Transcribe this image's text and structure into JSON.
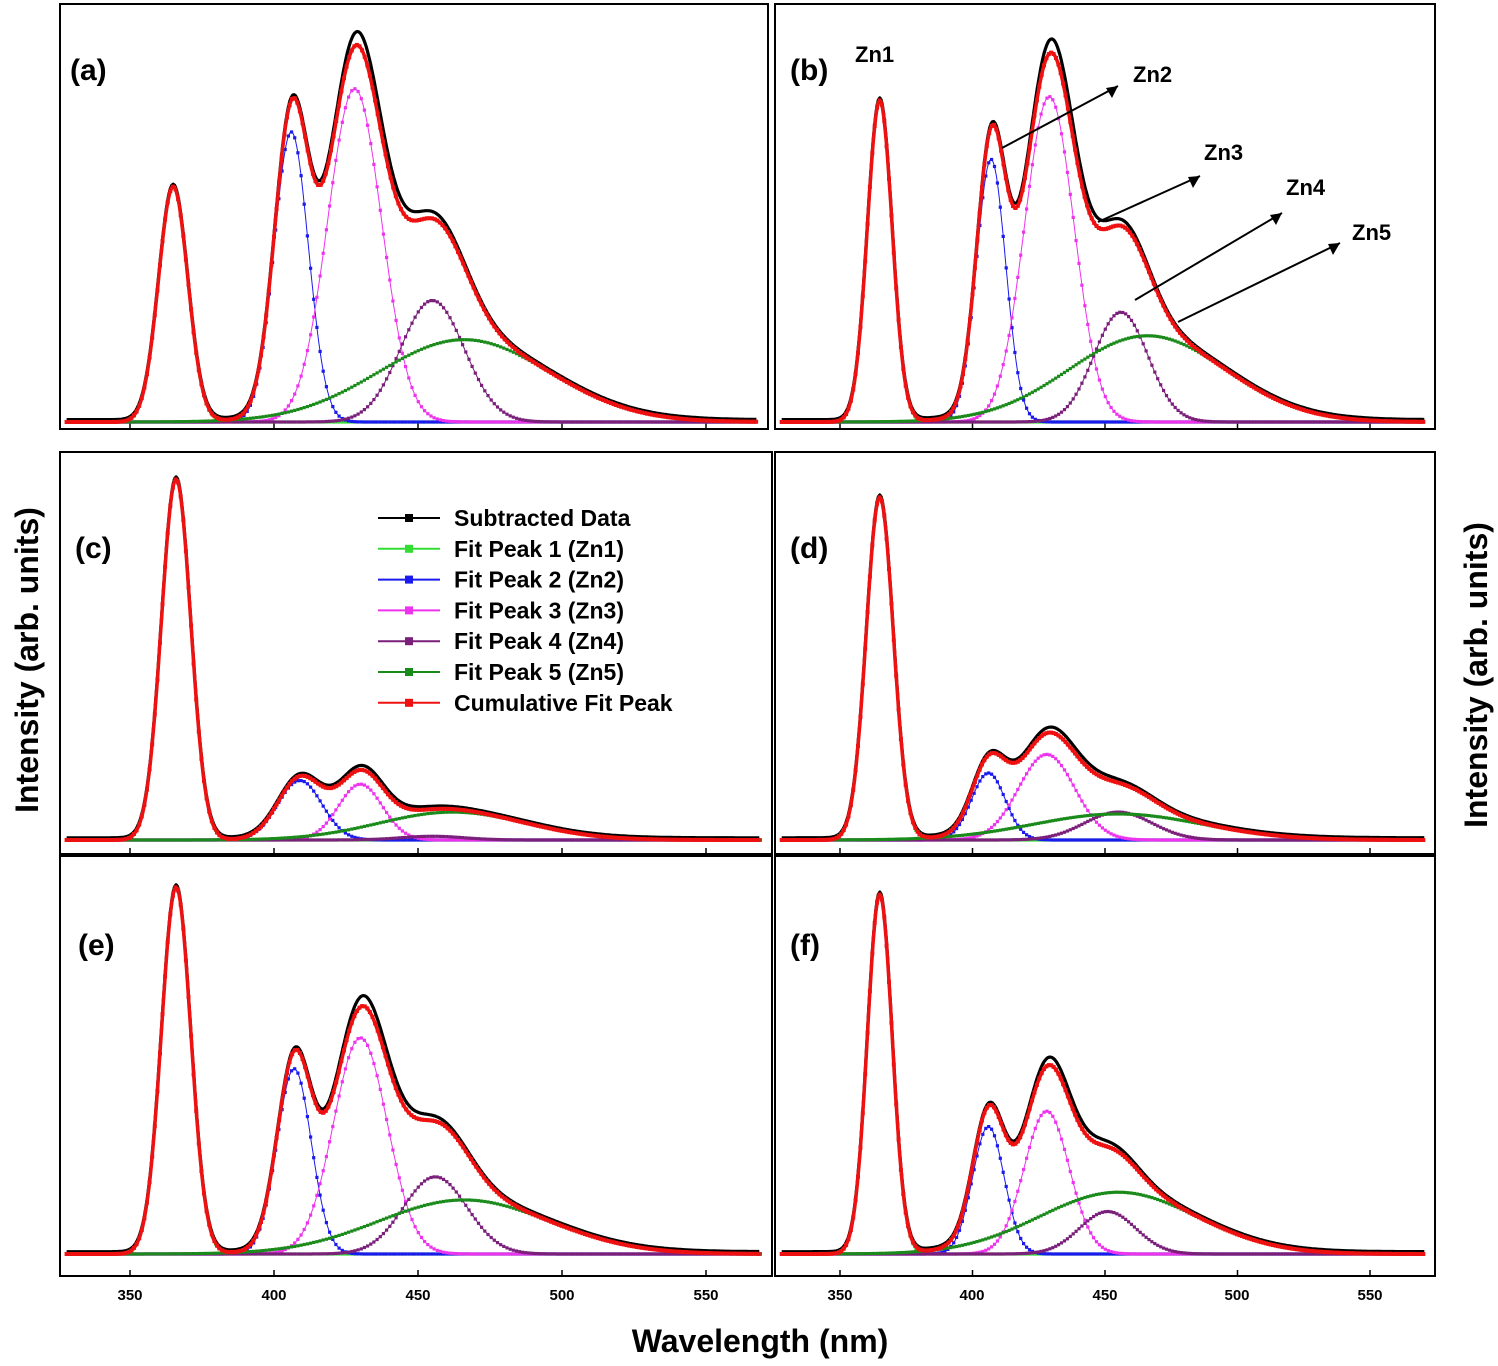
{
  "chart_data": {
    "type": "line",
    "xlabel": "Wavelength (nm)",
    "ylabel": "Intensity (arb. units)",
    "xlim": [
      325,
      575
    ],
    "xticks": [
      350,
      400,
      450,
      500,
      550
    ],
    "series_names": [
      "Subtracted Data",
      "Fit Peak 1 (Zn1)",
      "Fit Peak 2 (Zn2)",
      "Fit Peak 3 (Zn3)",
      "Fit Peak 4 (Zn4)",
      "Fit Peak 5 (Zn5)",
      "Cumulative Fit Peak"
    ],
    "series_colors": [
      "#000000",
      "#33dd33",
      "#1a1aee",
      "#ee33ee",
      "#7a1f7a",
      "#1a8a1a",
      "#ee1111"
    ],
    "panels": [
      {
        "label": "(a)",
        "peaks": [
          {
            "name": "Fit Peak 1 (Zn1)",
            "center": 365,
            "amplitude": 0.6,
            "fwhm": 12
          },
          {
            "name": "Fit Peak 2 (Zn2)",
            "center": 406,
            "amplitude": 0.74,
            "fwhm": 14
          },
          {
            "name": "Fit Peak 3 (Zn3)",
            "center": 428,
            "amplitude": 0.85,
            "fwhm": 22
          },
          {
            "name": "Fit Peak 4 (Zn4)",
            "center": 455,
            "amplitude": 0.31,
            "fwhm": 26
          },
          {
            "name": "Fit Peak 5 (Zn5)",
            "center": 466,
            "amplitude": 0.21,
            "fwhm": 70
          }
        ]
      },
      {
        "label": "(b)",
        "peaks": [
          {
            "name": "Fit Peak 1 (Zn1)",
            "center": 365,
            "amplitude": 0.82,
            "fwhm": 11
          },
          {
            "name": "Fit Peak 2 (Zn2)",
            "center": 407,
            "amplitude": 0.67,
            "fwhm": 13
          },
          {
            "name": "Fit Peak 3 (Zn3)",
            "center": 429,
            "amplitude": 0.83,
            "fwhm": 22
          },
          {
            "name": "Fit Peak 4 (Zn4)",
            "center": 456,
            "amplitude": 0.28,
            "fwhm": 24
          },
          {
            "name": "Fit Peak 5 (Zn5)",
            "center": 466,
            "amplitude": 0.22,
            "fwhm": 70
          }
        ],
        "annotations": [
          "Zn1",
          "Zn2",
          "Zn3",
          "Zn4",
          "Zn5"
        ]
      },
      {
        "label": "(c)",
        "peaks": [
          {
            "name": "Fit Peak 1 (Zn1)",
            "center": 366,
            "amplitude": 0.97,
            "fwhm": 12
          },
          {
            "name": "Fit Peak 2 (Zn2)",
            "center": 409,
            "amplitude": 0.16,
            "fwhm": 18
          },
          {
            "name": "Fit Peak 3 (Zn3)",
            "center": 430,
            "amplitude": 0.15,
            "fwhm": 18
          },
          {
            "name": "Fit Peak 4 (Zn4)",
            "center": 455,
            "amplitude": 0.01,
            "fwhm": 26
          },
          {
            "name": "Fit Peak 5 (Zn5)",
            "center": 462,
            "amplitude": 0.075,
            "fwhm": 60
          }
        ]
      },
      {
        "label": "(d)",
        "peaks": [
          {
            "name": "Fit Peak 1 (Zn1)",
            "center": 365,
            "amplitude": 0.92,
            "fwhm": 12
          },
          {
            "name": "Fit Peak 2 (Zn2)",
            "center": 406,
            "amplitude": 0.18,
            "fwhm": 15
          },
          {
            "name": "Fit Peak 3 (Zn3)",
            "center": 428,
            "amplitude": 0.23,
            "fwhm": 25
          },
          {
            "name": "Fit Peak 4 (Zn4)",
            "center": 455,
            "amplitude": 0.075,
            "fwhm": 30
          },
          {
            "name": "Fit Peak 5 (Zn5)",
            "center": 455,
            "amplitude": 0.07,
            "fwhm": 75
          }
        ]
      },
      {
        "label": "(e)",
        "peaks": [
          {
            "name": "Fit Peak 1 (Zn1)",
            "center": 366,
            "amplitude": 0.95,
            "fwhm": 12
          },
          {
            "name": "Fit Peak 2 (Zn2)",
            "center": 407,
            "amplitude": 0.48,
            "fwhm": 14
          },
          {
            "name": "Fit Peak 3 (Zn3)",
            "center": 430,
            "amplitude": 0.56,
            "fwhm": 22
          },
          {
            "name": "Fit Peak 4 (Zn4)",
            "center": 456,
            "amplitude": 0.2,
            "fwhm": 26
          },
          {
            "name": "Fit Peak 5 (Zn5)",
            "center": 466,
            "amplitude": 0.14,
            "fwhm": 70
          }
        ]
      },
      {
        "label": "(f)",
        "peaks": [
          {
            "name": "Fit Peak 1 (Zn1)",
            "center": 365,
            "amplitude": 0.93,
            "fwhm": 11
          },
          {
            "name": "Fit Peak 2 (Zn2)",
            "center": 406,
            "amplitude": 0.33,
            "fwhm": 14
          },
          {
            "name": "Fit Peak 3 (Zn3)",
            "center": 428,
            "amplitude": 0.37,
            "fwhm": 20
          },
          {
            "name": "Fit Peak 4 (Zn4)",
            "center": 451,
            "amplitude": 0.11,
            "fwhm": 25
          },
          {
            "name": "Fit Peak 5 (Zn5)",
            "center": 455,
            "amplitude": 0.16,
            "fwhm": 70
          }
        ]
      }
    ]
  }
}
